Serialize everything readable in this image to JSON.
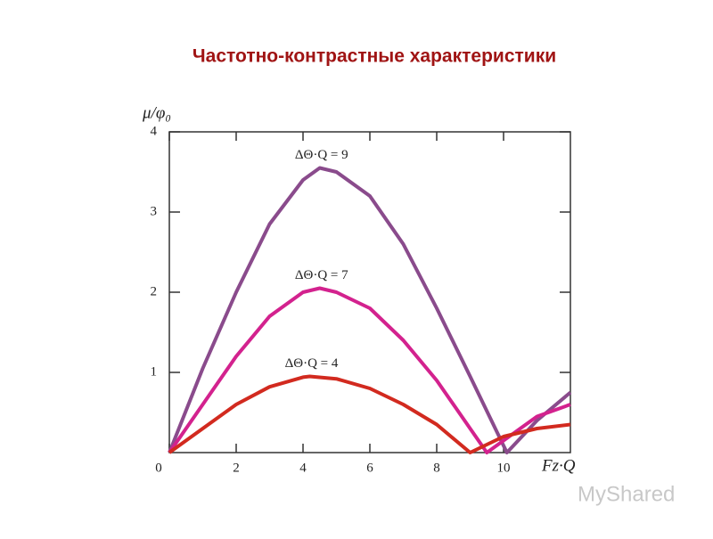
{
  "chart_data": {
    "type": "line",
    "title": "Частотно-контрастные характеристики",
    "y_label": "μ/φ₀",
    "x_label": "Fz·Q",
    "watermark": "MyShared",
    "xlim": [
      0,
      12
    ],
    "ylim": [
      0,
      4
    ],
    "xticks": [
      0,
      2,
      4,
      6,
      8,
      10
    ],
    "yticks": [
      1,
      2,
      3,
      4
    ],
    "series": [
      {
        "name": "ΔΘ·Q = 9",
        "color": "#8a4b8c",
        "x": [
          0,
          1,
          2,
          3,
          4,
          4.5,
          5,
          6,
          7,
          8,
          9,
          10.1,
          11,
          12
        ],
        "values": [
          0,
          1.05,
          2.0,
          2.85,
          3.4,
          3.55,
          3.5,
          3.2,
          2.6,
          1.8,
          0.95,
          0,
          0.4,
          0.75
        ]
      },
      {
        "name": "ΔΘ·Q = 7",
        "color": "#d3228e",
        "x": [
          0,
          1,
          2,
          3,
          4,
          4.5,
          5,
          6,
          7,
          8,
          9,
          9.5,
          10.5,
          11,
          12
        ],
        "values": [
          0,
          0.6,
          1.2,
          1.7,
          2.0,
          2.05,
          2.0,
          1.8,
          1.4,
          0.9,
          0.3,
          0,
          0.3,
          0.45,
          0.6
        ]
      },
      {
        "name": "ΔΘ·Q = 4",
        "color": "#d22a1f",
        "x": [
          0,
          1,
          2,
          3,
          4,
          4.2,
          5,
          6,
          7,
          8,
          9,
          10,
          11,
          12
        ],
        "values": [
          0,
          0.3,
          0.6,
          0.82,
          0.94,
          0.95,
          0.92,
          0.8,
          0.6,
          0.35,
          0,
          0.2,
          0.3,
          0.35
        ]
      }
    ]
  }
}
